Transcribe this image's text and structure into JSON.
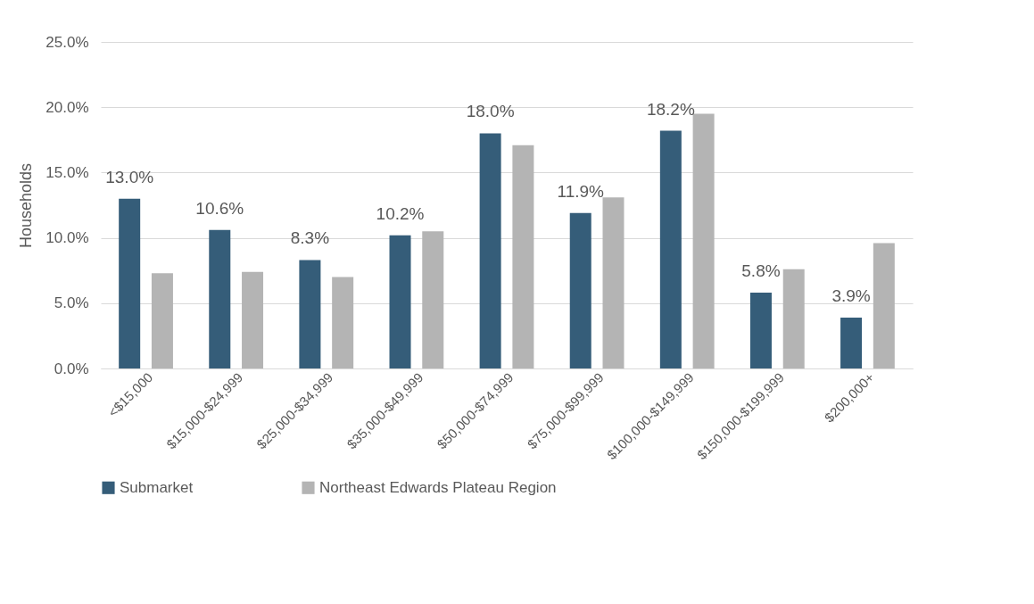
{
  "chart_data": {
    "type": "bar",
    "ylabel": "Households",
    "categories": [
      "<$15,000",
      "$15,000-$24,999",
      "$25,000-$34,999",
      "$35,000-$49,999",
      "$50,000-$74,999",
      "$75,000-$99,999",
      "$100,000-$149,999",
      "$150,000-$199,999",
      "$200,000+"
    ],
    "series": [
      {
        "name": "Submarket",
        "color": "#355d79",
        "values": [
          13.0,
          10.6,
          8.3,
          10.2,
          18.0,
          11.9,
          18.2,
          5.8,
          3.9
        ],
        "value_labels": [
          "13.0%",
          "10.6%",
          "8.3%",
          "10.2%",
          "18.0%",
          "11.9%",
          "18.2%",
          "5.8%",
          "3.9%"
        ]
      },
      {
        "name": "Northeast Edwards Plateau Region",
        "color": "#b4b4b4",
        "values": [
          7.3,
          7.4,
          7.0,
          10.5,
          17.1,
          13.1,
          19.5,
          7.6,
          9.6
        ]
      }
    ],
    "ylim": [
      0,
      25
    ],
    "yticks": [
      {
        "value": 0,
        "label": "0.0%"
      },
      {
        "value": 5,
        "label": "5.0%"
      },
      {
        "value": 10,
        "label": "10.0%"
      },
      {
        "value": 15,
        "label": "15.0%"
      },
      {
        "value": 20,
        "label": "20.0%"
      },
      {
        "value": 25,
        "label": "25.0%"
      }
    ],
    "grid": "y",
    "legend": "bottom"
  }
}
